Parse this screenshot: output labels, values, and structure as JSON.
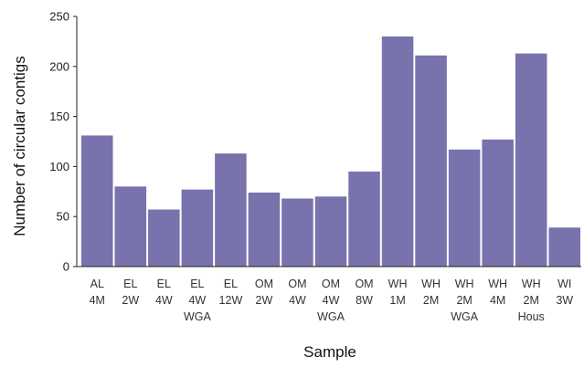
{
  "chart_data": {
    "type": "bar",
    "categories": [
      [
        "AL",
        "4M"
      ],
      [
        "EL",
        "2W"
      ],
      [
        "EL",
        "4W"
      ],
      [
        "EL",
        "4W",
        "WGA"
      ],
      [
        "EL",
        "12W"
      ],
      [
        "OM",
        "2W"
      ],
      [
        "OM",
        "4W"
      ],
      [
        "OM",
        "4W",
        "WGA"
      ],
      [
        "OM",
        "8W"
      ],
      [
        "WH",
        "1M"
      ],
      [
        "WH",
        "2M"
      ],
      [
        "WH",
        "2M",
        "WGA"
      ],
      [
        "WH",
        "4M"
      ],
      [
        "WH",
        "2M",
        "Hous"
      ],
      [
        "WI",
        "3W"
      ]
    ],
    "values": [
      131,
      80,
      57,
      77,
      113,
      74,
      68,
      70,
      95,
      230,
      211,
      117,
      127,
      213,
      39
    ],
    "xlabel": "Sample",
    "ylabel": "Number of circular contigs",
    "ylim": [
      0,
      250
    ],
    "yticks": [
      0,
      50,
      100,
      150,
      200,
      250
    ],
    "bar_color": "#7872ad",
    "grid": false
  }
}
